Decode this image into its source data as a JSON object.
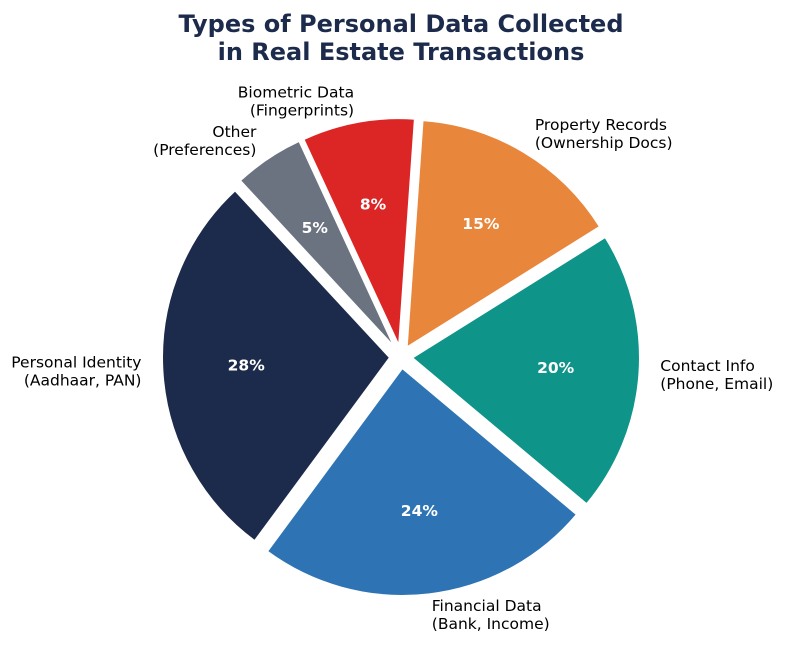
{
  "chart_data": {
    "type": "pie",
    "title_lines": [
      "Types of Personal Data Collected",
      "in Real Estate Transactions"
    ],
    "slices": [
      {
        "label_lines": [
          "Property Records",
          "(Ownership Docs)"
        ],
        "value": 15,
        "pct_label": "15%",
        "color": "#e8863b"
      },
      {
        "label_lines": [
          "Contact Info",
          "(Phone, Email)"
        ],
        "value": 20,
        "pct_label": "20%",
        "color": "#0e9488"
      },
      {
        "label_lines": [
          "Financial Data",
          "(Bank, Income)"
        ],
        "value": 24,
        "pct_label": "24%",
        "color": "#2e74b5"
      },
      {
        "label_lines": [
          "Personal Identity",
          "(Aadhaar, PAN)"
        ],
        "value": 28,
        "pct_label": "28%",
        "color": "#1c2b4b"
      },
      {
        "label_lines": [
          "Other",
          "(Preferences)"
        ],
        "value": 5,
        "pct_label": "5%",
        "color": "#6b7280"
      },
      {
        "label_lines": [
          "Biometric Data",
          "(Fingerprints)"
        ],
        "value": 8,
        "pct_label": "8%",
        "color": "#dc2626"
      }
    ]
  }
}
